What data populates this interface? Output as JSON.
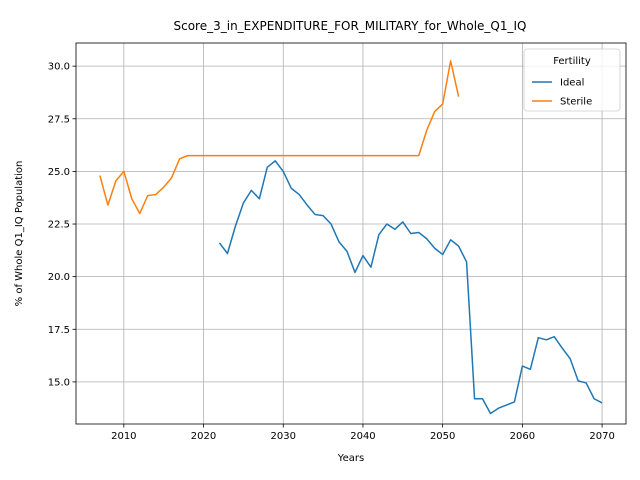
{
  "chart_data": {
    "type": "line",
    "title": "Score_3_in_EXPENDITURE_FOR_MILITARY_for_Whole_Q1_IQ",
    "xlabel": "Years",
    "ylabel": "% of Whole Q1_IQ Population",
    "xlim": [
      2004,
      2073
    ],
    "ylim": [
      13.0,
      31.1
    ],
    "xticks": [
      2010,
      2020,
      2030,
      2040,
      2050,
      2060,
      2070
    ],
    "yticks": [
      15.0,
      17.5,
      20.0,
      22.5,
      25.0,
      27.5,
      30.0
    ],
    "xtick_labels": [
      "2010",
      "2020",
      "2030",
      "2040",
      "2050",
      "2060",
      "2070"
    ],
    "ytick_labels": [
      "15.0",
      "17.5",
      "20.0",
      "22.5",
      "25.0",
      "27.5",
      "30.0"
    ],
    "grid": true,
    "legend": {
      "title": "Fertility",
      "position": "top-right"
    },
    "series": [
      {
        "name": "Ideal",
        "color": "#1f77b4",
        "x": [
          2022,
          2023,
          2024,
          2025,
          2026,
          2027,
          2028,
          2029,
          2030,
          2031,
          2032,
          2033,
          2034,
          2035,
          2036,
          2037,
          2038,
          2039,
          2040,
          2041,
          2042,
          2043,
          2044,
          2045,
          2046,
          2047,
          2048,
          2049,
          2050,
          2051,
          2052,
          2053,
          2054,
          2055,
          2056,
          2057,
          2058,
          2059,
          2060,
          2061,
          2062,
          2063,
          2064,
          2065,
          2066,
          2067,
          2068,
          2069,
          2070
        ],
        "y": [
          21.6,
          21.1,
          22.4,
          23.5,
          24.1,
          23.7,
          25.2,
          25.5,
          25.0,
          24.2,
          23.9,
          23.4,
          22.95,
          22.9,
          22.5,
          21.65,
          21.2,
          20.2,
          21.0,
          20.45,
          22.0,
          22.5,
          22.25,
          22.6,
          22.05,
          22.1,
          21.8,
          21.35,
          21.05,
          21.75,
          21.45,
          20.7,
          14.2,
          14.2,
          13.5,
          13.75,
          13.9,
          14.05,
          15.75,
          15.6,
          17.1,
          17.0,
          17.15,
          16.6,
          16.1,
          15.05,
          14.95,
          14.2,
          14.0
        ]
      },
      {
        "name": "Sterile",
        "color": "#ff7f0e",
        "x": [
          2007,
          2008,
          2009,
          2010,
          2011,
          2012,
          2013,
          2014,
          2015,
          2016,
          2017,
          2018,
          2019,
          2020,
          2021,
          2022,
          2023,
          2024,
          2025,
          2026,
          2027,
          2028,
          2029,
          2030,
          2031,
          2032,
          2033,
          2034,
          2035,
          2036,
          2037,
          2038,
          2039,
          2040,
          2041,
          2042,
          2043,
          2044,
          2045,
          2046,
          2047,
          2048,
          2049,
          2050,
          2051,
          2052
        ],
        "y": [
          24.8,
          23.4,
          24.55,
          25.0,
          23.7,
          23.0,
          23.85,
          23.9,
          24.25,
          24.7,
          25.6,
          25.75,
          25.75,
          25.75,
          25.75,
          25.75,
          25.75,
          25.75,
          25.75,
          25.75,
          25.75,
          25.75,
          25.75,
          25.75,
          25.75,
          25.75,
          25.75,
          25.75,
          25.75,
          25.75,
          25.75,
          25.75,
          25.75,
          25.75,
          25.75,
          25.75,
          25.75,
          25.75,
          25.75,
          25.75,
          25.75,
          26.95,
          27.85,
          28.2,
          30.25,
          28.55
        ]
      }
    ]
  }
}
